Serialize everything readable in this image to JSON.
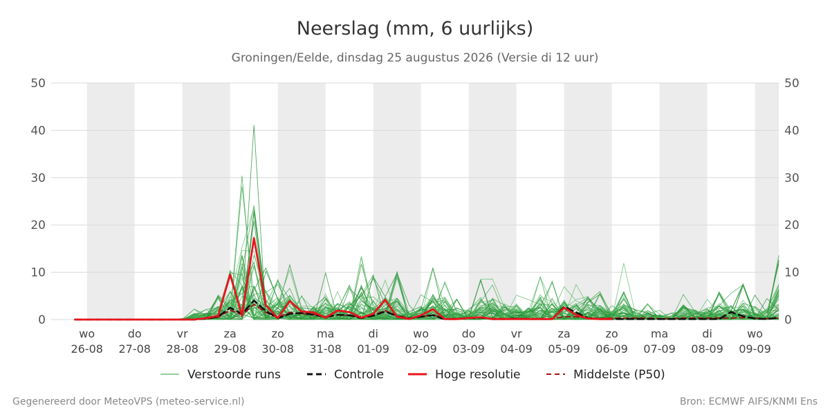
{
  "chart_data": {
    "type": "line",
    "title": "Neerslag (mm, 6 uurlijks)",
    "subtitle": "Groningen/Eelde, dinsdag 25 augustus 2026 (Versie di 12 uur)",
    "xlabel": "",
    "ylabel": "",
    "ylim": [
      0,
      50
    ],
    "yticks": [
      0,
      10,
      20,
      30,
      40,
      50
    ],
    "grid": true,
    "legend_position": "bottom",
    "x_range": [
      "2026-08-26T00:00",
      "2026-09-10T00:00"
    ],
    "step_hours": 6,
    "x_start": "2026-08-25T18:00",
    "x_tick_labels": [
      [
        "wo",
        "26-08"
      ],
      [
        "do",
        "27-08"
      ],
      [
        "vr",
        "28-08"
      ],
      [
        "za",
        "29-08"
      ],
      [
        "zo",
        "30-08"
      ],
      [
        "ma",
        "31-08"
      ],
      [
        "di",
        "01-09"
      ],
      [
        "wo",
        "02-09"
      ],
      [
        "do",
        "03-09"
      ],
      [
        "vr",
        "04-09"
      ],
      [
        "za",
        "05-09"
      ],
      [
        "zo",
        "06-09"
      ],
      [
        "ma",
        "07-09"
      ],
      [
        "di",
        "08-09"
      ],
      [
        "wo",
        "09-09"
      ]
    ],
    "weekend_shading": [
      "2026-08-26",
      "2026-08-28",
      "2026-08-30",
      "2026-09-01",
      "2026-09-03",
      "2026-09-05",
      "2026-09-07",
      "2026-09-09"
    ],
    "series": [
      {
        "name": "Hoge resolutie",
        "color": "#e8141c",
        "style": "solid",
        "values": [
          0,
          0,
          0,
          0,
          0,
          0,
          0,
          0,
          0,
          0,
          0,
          0.3,
          0.8,
          9.5,
          0.8,
          17.2,
          3,
          0.3,
          3.9,
          1.7,
          1.5,
          0.4,
          1.9,
          1.6,
          0.4,
          1.2,
          4.2,
          0.6,
          0.1,
          0.9,
          2.2,
          0.1,
          0.1,
          0.3,
          0.5,
          0.1,
          0.1,
          0.1,
          0.1,
          0.1,
          0.1,
          2.5,
          1.0,
          0.2,
          0.1,
          0.1
        ]
      },
      {
        "name": "Controle",
        "color": "#111111",
        "style": "dashed",
        "values": [
          0,
          0,
          0,
          0,
          0,
          0,
          0,
          0,
          0,
          0,
          0,
          0.2,
          0.6,
          2.5,
          1.2,
          4.0,
          1.8,
          0.3,
          1.2,
          1.4,
          1.0,
          0.5,
          1.0,
          0.9,
          0.3,
          0.8,
          1.7,
          0.7,
          0.2,
          0.6,
          0.9,
          0.1,
          0.1,
          0.3,
          0.4,
          0.1,
          0.1,
          0.2,
          0.1,
          0.1,
          0.1,
          2.7,
          1.5,
          0.3,
          0.1,
          0.1,
          0.1,
          0.1,
          0.1,
          0.1,
          0.1,
          0.1,
          0.1,
          0.1,
          0.1,
          1.6,
          0.7,
          0.2,
          0.1,
          0.4,
          0.1,
          0.1,
          0.1,
          0.1
        ]
      },
      {
        "name": "Middelste (P50)",
        "color": "#a01414",
        "style": "dashed",
        "values": [
          0,
          0,
          0,
          0,
          0,
          0,
          0,
          0,
          0,
          0,
          0,
          0.1,
          0.5,
          2.0,
          1.0,
          3.2,
          1.5,
          0.4,
          1.5,
          1.2,
          1.1,
          0.6,
          1.0,
          0.9,
          0.4,
          0.9,
          1.9,
          0.8,
          0.3,
          0.6,
          1.0,
          0.2,
          0.2,
          0.4,
          0.4,
          0.2,
          0.2,
          0.2,
          0.2,
          0.2,
          0.2,
          0.6,
          0.6,
          0.3,
          0.2,
          0.3,
          0.3,
          0.3,
          0.3,
          0.2,
          0.2,
          0.3,
          0.3,
          0.3,
          0.3,
          0.3,
          0.4,
          0.3,
          0.2,
          0.3,
          0.3,
          0.3,
          0.3,
          0.3
        ]
      }
    ],
    "ensemble": {
      "name": "Verstoorde runs",
      "color": "#2e9e3e",
      "member_count": 50,
      "peaks_by_step": [
        0,
        0,
        0,
        0,
        0,
        0,
        0,
        0,
        0,
        0.2,
        2.3,
        2.5,
        5.2,
        11,
        31.2,
        44.2,
        11.5,
        8.5,
        12,
        5.5,
        5.3,
        9.9,
        6.5,
        7.5,
        13.5,
        10,
        8.9,
        10.2,
        3.2,
        5.5,
        11,
        8.6,
        4.6,
        5,
        8.8,
        8.6,
        6.2,
        6,
        4.5,
        10,
        8.2,
        7.5,
        7.7,
        8.9,
        6.1,
        3.3,
        12.6,
        4.1,
        3.5,
        2,
        1.5,
        6.2,
        4,
        4.5,
        6.2,
        6,
        8.2,
        5.5,
        4.8,
        13.9,
        6.6,
        4.4
      ]
    }
  },
  "legend": {
    "items": [
      {
        "label": "Verstoorde runs",
        "color": "#2e9e3e",
        "style": "thin"
      },
      {
        "label": "Controle",
        "color": "#111111",
        "style": "dashed"
      },
      {
        "label": "Hoge resolutie",
        "color": "#e8141c",
        "style": "solid"
      },
      {
        "label": "Middelste (P50)",
        "color": "#a01414",
        "style": "dashed"
      }
    ]
  },
  "footer": {
    "left": "Gegenereerd door MeteoVPS (meteo-service.nl)",
    "right": "Bron: ECMWF AIFS/KNMI Ens"
  }
}
